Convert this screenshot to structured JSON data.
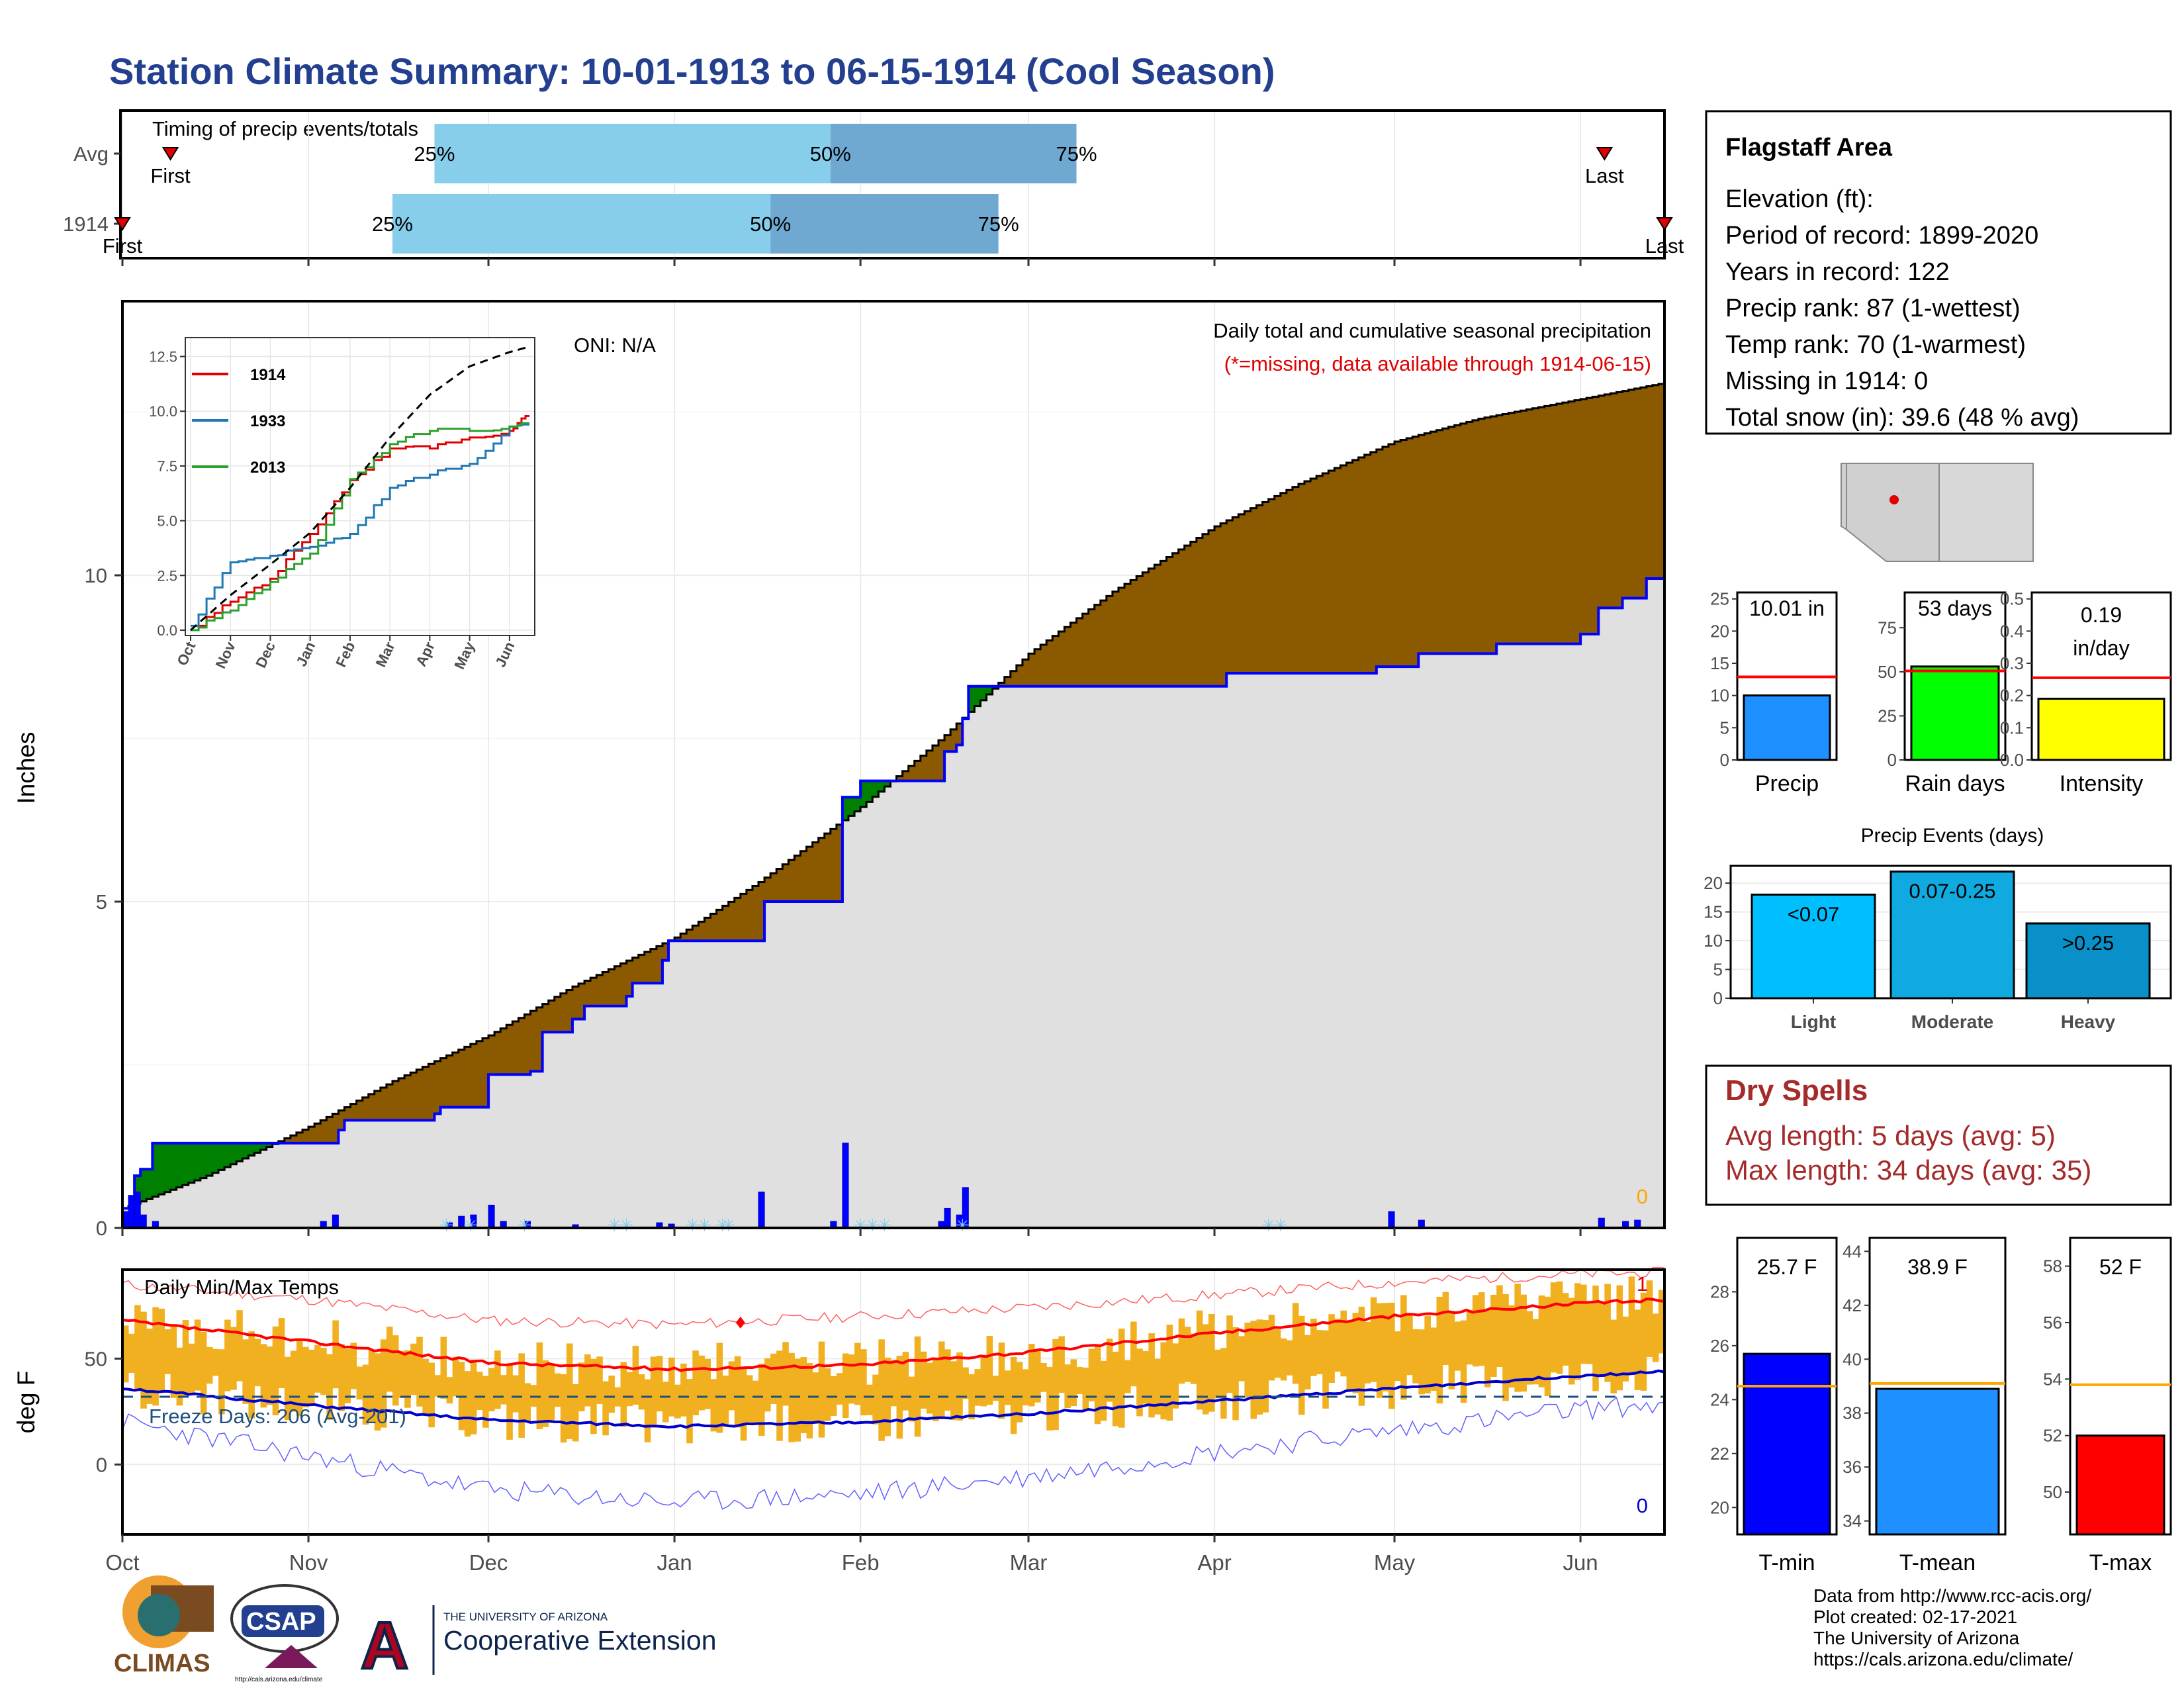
{
  "page": {
    "title": "Station Climate Summary: 10-01-1913 to 06-15-1914 (Cool Season)",
    "credits": [
      "Data from http://www.rcc-acis.org/",
      "Plot created: 02-17-2021",
      "The University of Arizona",
      "https://cals.arizona.edu/climate/"
    ],
    "logos": {
      "climas": "CLIMAS",
      "csap": "CSAP",
      "csap_url": "http://cals.arizona.edu/climate",
      "ua_top": "THE UNIVERSITY OF ARIZONA",
      "ua_bottom": "Cooperative Extension"
    }
  },
  "station": {
    "name": "Flagstaff Area",
    "lines": [
      "Elevation (ft):",
      "Period of record: 1899-2020",
      "Years in record: 122",
      "Precip rank: 87 (1-wettest)",
      "Temp rank: 70 (1-warmest)",
      "Missing in 1914: 0",
      "Total snow (in): 39.6 (48 % avg)"
    ]
  },
  "month_labels": [
    "Oct",
    "Nov",
    "Dec",
    "Jan",
    "Feb",
    "Mar",
    "Apr",
    "May",
    "Jun"
  ],
  "chart_data": [
    {
      "id": "timing",
      "type": "bar",
      "title": "Timing of precip events/totals",
      "rows": [
        {
          "label": "Avg",
          "q25": "1913-11-22",
          "q50": "1914-01-27",
          "q75": "1914-03-09",
          "first": "1913-10-09",
          "last": "1914-06-05"
        },
        {
          "label": "1914",
          "q25": "1913-11-15",
          "q50": "1914-01-17",
          "q75": "1914-02-24",
          "first": "1913-10-01",
          "last": "1914-06-15"
        }
      ],
      "q_labels": [
        "25%",
        "50%",
        "75%"
      ],
      "marker_labels": {
        "first": "First",
        "last": "Last"
      },
      "colors": {
        "light": "#87ceeb",
        "dark": "#6fa8d0",
        "marker": "#e00000"
      }
    },
    {
      "id": "precip_main",
      "type": "area",
      "ylabel": "Inches",
      "ylim": [
        0,
        14.2
      ],
      "yticks": [
        0,
        5,
        10
      ],
      "annotation_title": "Daily total and cumulative seasonal precipitation",
      "annotation_missing": "(*=missing, data available through 1914-06-15)",
      "oni": "ONI: N/A",
      "missing_count": "0",
      "series": [
        {
          "name": "avg_cumulative",
          "x": [
            "1913-10-01",
            "1913-10-15",
            "1913-11-01",
            "1913-11-15",
            "1913-12-01",
            "1913-12-15",
            "1914-01-01",
            "1914-01-15",
            "1914-02-01",
            "1914-02-15",
            "1914-03-01",
            "1914-03-15",
            "1914-04-01",
            "1914-04-15",
            "1914-05-01",
            "1914-05-15",
            "1914-06-01",
            "1914-06-15"
          ],
          "y": [
            0.3,
            0.8,
            1.55,
            2.25,
            2.95,
            3.7,
            4.45,
            5.3,
            6.45,
            7.55,
            8.8,
            9.75,
            10.75,
            11.4,
            12.05,
            12.4,
            12.7,
            12.95
          ]
        },
        {
          "name": "1914_cumulative",
          "x": [
            "1913-10-01",
            "1913-10-03",
            "1913-10-04",
            "1913-10-06",
            "1913-11-01",
            "1913-11-06",
            "1913-11-07",
            "1913-11-15",
            "1913-11-22",
            "1913-11-23",
            "1913-12-01",
            "1913-12-07",
            "1913-12-08",
            "1913-12-10",
            "1913-12-15",
            "1913-12-17",
            "1913-12-24",
            "1913-12-25",
            "1913-12-30",
            "1913-12-31",
            "1914-01-15",
            "1914-01-16",
            "1914-01-28",
            "1914-01-29",
            "1914-02-01",
            "1914-02-14",
            "1914-02-15",
            "1914-02-17",
            "1914-02-18",
            "1914-02-19",
            "1914-04-01",
            "1914-04-03",
            "1914-04-28",
            "1914-05-05",
            "1914-05-18",
            "1914-06-01",
            "1914-06-04",
            "1914-06-08",
            "1914-06-12",
            "1914-06-15"
          ],
          "y": [
            0.3,
            0.8,
            0.9,
            1.3,
            1.3,
            1.5,
            1.65,
            1.65,
            1.75,
            1.85,
            2.35,
            2.35,
            2.4,
            3.0,
            3.2,
            3.4,
            3.55,
            3.75,
            4.1,
            4.4,
            4.4,
            5.0,
            5.0,
            6.6,
            6.85,
            6.85,
            7.3,
            7.4,
            7.8,
            8.3,
            8.3,
            8.5,
            8.6,
            8.8,
            8.95,
            9.1,
            9.5,
            9.65,
            9.95,
            10.01
          ]
        },
        {
          "name": "daily_precip",
          "x": [
            "1913-10-01",
            "1913-10-02",
            "1913-10-03",
            "1913-10-04",
            "1913-10-06",
            "1913-11-03",
            "1913-11-05",
            "1913-11-24",
            "1913-11-26",
            "1913-11-28",
            "1913-12-01",
            "1913-12-03",
            "1913-12-07",
            "1913-12-15",
            "1913-12-29",
            "1913-12-31",
            "1914-01-15",
            "1914-01-27",
            "1914-01-29",
            "1914-02-14",
            "1914-02-15",
            "1914-02-17",
            "1914-02-18",
            "1914-04-30",
            "1914-05-05",
            "1914-06-04",
            "1914-06-08",
            "1914-06-10"
          ],
          "y": [
            0.25,
            0.5,
            0.55,
            0.2,
            0.1,
            0.1,
            0.2,
            0.08,
            0.18,
            0.2,
            0.35,
            0.1,
            0.1,
            0.05,
            0.08,
            0.06,
            0.55,
            0.1,
            1.3,
            0.1,
            0.3,
            0.2,
            0.62,
            0.25,
            0.12,
            0.15,
            0.1,
            0.12
          ]
        }
      ],
      "colors": {
        "below_avg": "#8b5a00",
        "above_avg": "#008000",
        "line_1914": "#0000ff",
        "fill": "#e0e0e0"
      }
    },
    {
      "id": "inset_cumulative",
      "type": "line",
      "ylim": [
        0,
        12.5
      ],
      "yticks": [
        0.0,
        2.5,
        5.0,
        7.5,
        10.0,
        12.5
      ],
      "yticklabels": [
        "0.0",
        "2.5",
        "5.0",
        "7.5",
        "10.0",
        "12.5"
      ],
      "x_month_index": [
        0,
        1,
        2,
        3,
        4,
        5,
        6,
        7,
        8,
        8.5
      ],
      "series": [
        {
          "name": "1914",
          "color": "#e00000",
          "y": [
            0,
            1.3,
            2.35,
            4.4,
            6.85,
            8.3,
            8.3,
            8.8,
            9.1,
            10.0
          ]
        },
        {
          "name": "1933",
          "color": "#1f77b4",
          "y": [
            0.2,
            3.1,
            3.4,
            3.8,
            4.4,
            6.5,
            7.1,
            7.6,
            9.3,
            9.4
          ]
        },
        {
          "name": "2013",
          "color": "#2ca02c",
          "y": [
            0,
            0.9,
            2.2,
            3.5,
            6.9,
            8.5,
            9.1,
            9.1,
            9.3,
            9.5
          ]
        },
        {
          "name": "avg",
          "color": "#000000",
          "dash": true,
          "y": [
            0,
            1.6,
            3.0,
            4.45,
            6.5,
            8.8,
            10.75,
            12.05,
            12.7,
            12.95
          ]
        }
      ]
    },
    {
      "id": "temps",
      "type": "bar",
      "title": "Daily Min/Max Temps",
      "ylabel": "deg F",
      "ylim": [
        -33,
        92
      ],
      "yticks": [
        0,
        50
      ],
      "freeze_days_label": "Freeze Days: 206 (Avg-201)",
      "freeze_line": 32,
      "record_high_count": "1",
      "record_low_count": "0",
      "x_month_index": [
        0,
        1,
        2,
        3,
        4,
        5,
        6,
        7,
        8,
        8.5
      ],
      "avg_max": [
        68,
        58,
        48,
        45,
        47,
        53,
        62,
        70,
        76,
        79
      ],
      "avg_min": [
        36,
        28,
        21,
        18,
        20,
        24,
        30,
        36,
        42,
        45
      ],
      "record_max": [
        85,
        78,
        68,
        66,
        70,
        74,
        80,
        86,
        90,
        91
      ],
      "record_min": [
        20,
        4,
        -12,
        -18,
        -14,
        -6,
        6,
        16,
        26,
        30
      ],
      "colors": {
        "bars": "#f0b020",
        "avg_max": "#ff0000",
        "avg_min": "#0000cc",
        "rec_max": "#ff6060",
        "rec_min": "#6060ff",
        "freeze": "#1f4f7f"
      }
    },
    {
      "id": "precip_summary",
      "type": "bar",
      "categories": [
        "Precip",
        "Rain days",
        "Intensity"
      ],
      "values": [
        10.01,
        53,
        0.19
      ],
      "averages": [
        12.9,
        50.5,
        0.255
      ],
      "value_labels": [
        "10.01 in",
        "53 days",
        "0.19 in/day"
      ],
      "ylims": [
        [
          0,
          26
        ],
        [
          0,
          95
        ],
        [
          0,
          0.52
        ]
      ],
      "yticks": [
        [
          0,
          5,
          10,
          15,
          20,
          25
        ],
        [
          0,
          25,
          50,
          75
        ],
        [
          0.0,
          0.1,
          0.2,
          0.3,
          0.4,
          0.5
        ]
      ],
      "yticklabels": [
        [
          "0",
          "5",
          "10",
          "15",
          "20",
          "25"
        ],
        [
          "0",
          "25",
          "50",
          "75"
        ],
        [
          "0.0",
          "0.1",
          "0.2",
          "0.3",
          "0.4",
          "0.5"
        ]
      ],
      "colors": [
        "#1e90ff",
        "#00ff00",
        "#ffff00"
      ]
    },
    {
      "id": "precip_events",
      "type": "bar",
      "title": "Precip Events (days)",
      "categories": [
        "Light",
        "Moderate",
        "Heavy"
      ],
      "values": [
        18,
        22,
        13
      ],
      "bar_labels": [
        "<0.07",
        "0.07-0.25",
        ">0.25"
      ],
      "ylim": [
        0,
        23
      ],
      "yticks": [
        0,
        5,
        10,
        15,
        20
      ],
      "colors": [
        "#00bfff",
        "#10a9e0",
        "#0a90c8"
      ]
    },
    {
      "id": "temp_summary",
      "type": "bar",
      "categories": [
        "T-min",
        "T-mean",
        "T-max"
      ],
      "values": [
        25.7,
        38.9,
        52
      ],
      "averages": [
        24.5,
        39.1,
        53.8
      ],
      "value_labels": [
        "25.7 F",
        "38.9 F",
        "52 F"
      ],
      "ylims": [
        [
          19,
          30
        ],
        [
          33.5,
          44.5
        ],
        [
          48.5,
          59
        ]
      ],
      "yticks": [
        [
          20,
          22,
          24,
          26,
          28
        ],
        [
          34,
          36,
          38,
          40,
          42,
          44
        ],
        [
          50,
          52,
          54,
          56,
          58
        ]
      ],
      "colors": [
        "#0000ff",
        "#1e90ff",
        "#ff0000"
      ]
    }
  ],
  "dry_spells": {
    "title": "Dry Spells",
    "avg": "Avg length: 5 days (avg: 5)",
    "max": "Max length: 34 days (avg: 35)"
  }
}
